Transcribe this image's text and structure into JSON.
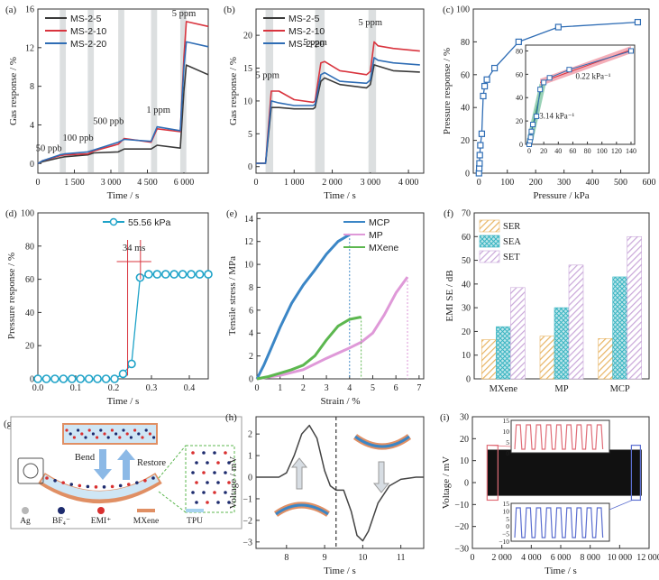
{
  "chart_data": [
    {
      "id": "a",
      "panel_label": "(a)",
      "type": "line",
      "xlabel": "Time / s",
      "ylabel": "Gas response / %",
      "xlim": [
        0,
        7000
      ],
      "ylim": [
        -1,
        16
      ],
      "xticks": [
        0,
        1500,
        3000,
        4500,
        6000
      ],
      "xtick_labels": [
        "0",
        "1 500",
        "3 000",
        "4 500",
        "6 000"
      ],
      "yticks": [
        0,
        4,
        8,
        12,
        16
      ],
      "ytick_labels": [
        "0",
        "4",
        "8",
        "12",
        "16"
      ],
      "legend_position": "top-left",
      "shaded_intervals": [
        [
          900,
          1150
        ],
        [
          2050,
          2300
        ],
        [
          3300,
          3550
        ],
        [
          4650,
          4900
        ],
        [
          5850,
          6100
        ]
      ],
      "annotations": [
        "50 ppb",
        "100 ppb",
        "500 ppb",
        "1 ppm",
        "5 ppm"
      ],
      "annotation_points": [
        [
          450,
          0.9
        ],
        [
          1650,
          2.0
        ],
        [
          2900,
          3.7
        ],
        [
          4950,
          4.9
        ],
        [
          6000,
          14.9
        ]
      ],
      "series": [
        {
          "name": "MS-2-5",
          "color": "#3a3a3a",
          "x": [
            0,
            200,
            900,
            1100,
            2050,
            2300,
            3300,
            3550,
            4650,
            4900,
            5850,
            6000,
            6100,
            7000
          ],
          "y": [
            0,
            0.2,
            0.6,
            0.7,
            0.9,
            1.1,
            1.2,
            1.5,
            1.5,
            1.9,
            1.6,
            7.5,
            10.2,
            9.2
          ]
        },
        {
          "name": "MS-2-10",
          "color": "#d9343e",
          "x": [
            0,
            200,
            900,
            1100,
            2050,
            2300,
            3300,
            3550,
            4650,
            4900,
            5850,
            6000,
            6100,
            7000
          ],
          "y": [
            0,
            0.3,
            0.8,
            0.9,
            1.0,
            1.3,
            2.0,
            2.6,
            2.2,
            3.6,
            3.3,
            11.0,
            14.7,
            14.2
          ]
        },
        {
          "name": "MS-2-20",
          "color": "#2f6db5",
          "x": [
            0,
            200,
            900,
            1100,
            2050,
            2300,
            3300,
            3550,
            4650,
            4900,
            5850,
            6000,
            6100,
            7000
          ],
          "y": [
            0,
            0.3,
            0.9,
            1.0,
            1.2,
            1.4,
            2.2,
            2.5,
            2.3,
            3.8,
            3.4,
            10.0,
            12.6,
            12.1
          ]
        }
      ]
    },
    {
      "id": "b",
      "panel_label": "(b)",
      "type": "line",
      "xlabel": "Time / s",
      "ylabel": "Gas response / %",
      "xlim": [
        0,
        4400
      ],
      "ylim": [
        -1,
        24
      ],
      "xticks": [
        0,
        1000,
        2000,
        3000,
        4000
      ],
      "xtick_labels": [
        "0",
        "1 000",
        "2 000",
        "3 000",
        "4 000"
      ],
      "yticks": [
        0,
        5,
        10,
        15,
        20
      ],
      "ytick_labels": [
        "0",
        "5",
        "10",
        "15",
        "20"
      ],
      "legend_position": "top-left",
      "shaded_intervals": [
        [
          250,
          450
        ],
        [
          1550,
          1800
        ],
        [
          2950,
          3150
        ]
      ],
      "annotations": [
        "5 ppm",
        "5 ppm",
        "5 ppm"
      ],
      "annotation_points": [
        [
          300,
          13.5
        ],
        [
          1550,
          18.5
        ],
        [
          3000,
          21.5
        ]
      ],
      "series": [
        {
          "name": "MS-2-5",
          "color": "#3a3a3a",
          "x": [
            0,
            250,
            400,
            600,
            1000,
            1500,
            1550,
            1700,
            1800,
            2200,
            2900,
            3000,
            3100,
            3200,
            3600,
            4300
          ],
          "y": [
            0.5,
            0.5,
            9.0,
            9.0,
            8.8,
            8.8,
            9.0,
            13.0,
            13.5,
            12.5,
            12.0,
            12.5,
            15.5,
            15.3,
            14.6,
            14.4
          ]
        },
        {
          "name": "MS-2-10",
          "color": "#d9343e",
          "x": [
            0,
            250,
            400,
            600,
            1000,
            1500,
            1550,
            1700,
            1800,
            2200,
            2900,
            3000,
            3100,
            3200,
            3600,
            4300
          ],
          "y": [
            0.5,
            0.5,
            11.5,
            11.5,
            10.2,
            9.8,
            10.0,
            15.8,
            16.0,
            14.6,
            14.0,
            14.5,
            19.0,
            18.4,
            18.0,
            17.6
          ]
        },
        {
          "name": "MS-2-20",
          "color": "#2f6db5",
          "x": [
            0,
            250,
            400,
            600,
            1000,
            1500,
            1550,
            1700,
            1800,
            2200,
            2900,
            3000,
            3100,
            3200,
            3600,
            4300
          ],
          "y": [
            0.5,
            0.5,
            10.0,
            9.7,
            9.3,
            9.3,
            9.5,
            14.0,
            14.3,
            13.0,
            12.7,
            13.2,
            16.6,
            16.2,
            15.8,
            15.5
          ]
        }
      ]
    },
    {
      "id": "c",
      "panel_label": "(c)",
      "type": "line",
      "xlabel": "Pressure / kPa",
      "ylabel": "Pressure response / %",
      "xlim": [
        -20,
        600
      ],
      "ylim": [
        0,
        100
      ],
      "xticks": [
        0,
        100,
        200,
        300,
        400,
        500,
        600
      ],
      "xtick_labels": [
        "0",
        "100",
        "200",
        "300",
        "400",
        "500",
        "600"
      ],
      "yticks": [
        0,
        20,
        40,
        60,
        80,
        100
      ],
      "ytick_labels": [
        "0",
        "20",
        "40",
        "60",
        "80",
        "100"
      ],
      "series": [
        {
          "name": "",
          "color": "#2f6db5",
          "x": [
            0,
            1,
            2,
            3,
            5,
            10,
            15,
            20,
            28,
            55,
            140,
            280,
            560
          ],
          "y": [
            0,
            3,
            6,
            11,
            17,
            24,
            47,
            53,
            57,
            64,
            80,
            89,
            92
          ]
        }
      ],
      "inset": {
        "xlim": [
          -5,
          145
        ],
        "ylim": [
          0,
          85
        ],
        "xticks": [
          0,
          20,
          40,
          60,
          80,
          100,
          120,
          140
        ],
        "xtick_labels": [
          "0",
          "20",
          "40",
          "60",
          "80",
          "100",
          "120",
          "140"
        ],
        "yticks": [
          0,
          20,
          40,
          60,
          80
        ],
        "ytick_labels": [
          "0",
          "20",
          "40",
          "60",
          "80"
        ],
        "points_x": [
          0,
          1,
          2,
          3,
          5,
          10,
          15,
          20,
          28,
          55,
          140
        ],
        "points_y": [
          0,
          3,
          6,
          11,
          17,
          24,
          47,
          53,
          57,
          64,
          80
        ],
        "fit_low": {
          "x": [
            0,
            18
          ],
          "y": [
            2,
            52
          ],
          "label": "3.14 kPa⁻¹"
        },
        "fit_high": {
          "x": [
            15,
            140
          ],
          "y": [
            53,
            81
          ],
          "label": "0.22 kPa⁻¹"
        }
      }
    },
    {
      "id": "d",
      "panel_label": "(d)",
      "type": "line",
      "xlabel": "Time / s",
      "ylabel": "Pressure response / %",
      "xlim": [
        0,
        0.45
      ],
      "ylim": [
        0,
        100
      ],
      "xticks": [
        0,
        0.1,
        0.2,
        0.3,
        0.4
      ],
      "xtick_labels": [
        "0.0",
        "0.1",
        "0.2",
        "0.3",
        "0.4"
      ],
      "yticks": [
        0,
        20,
        40,
        60,
        80,
        100
      ],
      "ytick_labels": [
        "0",
        "20",
        "40",
        "60",
        "80",
        "100"
      ],
      "legend_position": "top-right",
      "response_time_label": "34 ms",
      "response_window": [
        0.237,
        0.271
      ],
      "series": [
        {
          "name": "55.56 kPa",
          "color": "#1fa3c8",
          "x": [
            0,
            0.0225,
            0.045,
            0.0675,
            0.09,
            0.1125,
            0.135,
            0.1575,
            0.18,
            0.2025,
            0.225,
            0.2475,
            0.27,
            0.2925,
            0.315,
            0.3375,
            0.36,
            0.3825,
            0.405,
            0.4275,
            0.45
          ],
          "y": [
            0,
            0,
            0,
            0,
            0,
            0,
            0,
            0,
            0,
            0,
            3,
            9,
            61,
            63,
            63,
            63,
            63,
            63,
            63,
            63,
            63
          ]
        }
      ]
    },
    {
      "id": "e",
      "panel_label": "(e)",
      "type": "line",
      "xlabel": "Strain / %",
      "ylabel": "Tensile stress / MPa",
      "xlim": [
        0,
        7.2
      ],
      "ylim": [
        0,
        14.5
      ],
      "xticks": [
        0,
        1,
        2,
        3,
        4,
        5,
        6,
        7
      ],
      "xtick_labels": [
        "0",
        "1",
        "2",
        "3",
        "4",
        "5",
        "6",
        "7"
      ],
      "yticks": [
        0,
        2,
        4,
        6,
        8,
        10,
        12,
        14
      ],
      "ytick_labels": [
        "0",
        "2",
        "4",
        "6",
        "8",
        "10",
        "12",
        "14"
      ],
      "legend_position": "top-right",
      "series": [
        {
          "name": "MCP",
          "color": "#3b86c6",
          "x": [
            0,
            0.3,
            0.6,
            1.0,
            1.5,
            2.0,
            2.5,
            3.0,
            3.5,
            4.0
          ],
          "y": [
            0,
            1.2,
            2.6,
            4.5,
            6.6,
            8.2,
            9.5,
            10.9,
            12.0,
            12.6
          ]
        },
        {
          "name": "MP",
          "color": "#df99d8",
          "x": [
            0,
            1,
            2,
            3,
            4,
            4.5,
            5,
            5.5,
            6,
            6.5
          ],
          "y": [
            0,
            0.3,
            0.8,
            1.8,
            2.7,
            3.2,
            4.0,
            5.6,
            7.5,
            8.9
          ]
        },
        {
          "name": "MXene",
          "color": "#5cb74f",
          "x": [
            0,
            0.5,
            1,
            1.5,
            2,
            2.5,
            3,
            3.5,
            4,
            4.5
          ],
          "y": [
            0,
            0.2,
            0.5,
            0.8,
            1.2,
            2.0,
            3.4,
            4.6,
            5.2,
            5.4
          ]
        }
      ]
    },
    {
      "id": "f",
      "panel_label": "(f)",
      "type": "bar",
      "ylabel": "EMI SE / dB",
      "ylim": [
        0,
        70
      ],
      "yticks": [
        0,
        10,
        20,
        30,
        40,
        50,
        60,
        70
      ],
      "ytick_labels": [
        "0",
        "10",
        "20",
        "30",
        "40",
        "50",
        "60",
        "70"
      ],
      "categories": [
        "MXene",
        "MP",
        "MCP"
      ],
      "legend_position": "top-left",
      "series": [
        {
          "name": "SER",
          "color": "#e8b463",
          "values": [
            16.5,
            18,
            17
          ]
        },
        {
          "name": "SEA",
          "color": "#39b5c2",
          "values": [
            22,
            30,
            43
          ]
        },
        {
          "name": "SET",
          "color": "#c9a7d9",
          "values": [
            38.5,
            48,
            60
          ]
        }
      ]
    },
    {
      "id": "h",
      "panel_label": "(h)",
      "type": "line",
      "xlabel": "Time / s",
      "ylabel": "Voltage / mV",
      "xlim": [
        7.2,
        11.6
      ],
      "ylim": [
        -3.3,
        2.8
      ],
      "xticks": [
        8,
        9,
        10,
        11
      ],
      "xtick_labels": [
        "8",
        "9",
        "10",
        "11"
      ],
      "yticks": [
        -3,
        -2,
        -1,
        0,
        1,
        2
      ],
      "ytick_labels": [
        "−3",
        "−2",
        "−1",
        "0",
        "1",
        "2"
      ],
      "divider_x": 9.3,
      "series": [
        {
          "name": "",
          "color": "#444444",
          "x": [
            7.2,
            7.8,
            8.0,
            8.2,
            8.4,
            8.6,
            8.8,
            9.0,
            9.15,
            9.3,
            9.5,
            9.7,
            9.85,
            10.0,
            10.15,
            10.4,
            10.7,
            11.0,
            11.4,
            11.6
          ],
          "y": [
            0,
            0,
            0.2,
            1.0,
            2.0,
            2.4,
            1.8,
            0.3,
            -0.4,
            -0.6,
            -0.6,
            -1.6,
            -2.7,
            -2.95,
            -2.5,
            -1.2,
            -0.4,
            -0.1,
            0,
            0
          ]
        }
      ]
    },
    {
      "id": "i",
      "panel_label": "(i)",
      "type": "area",
      "xlabel": "Time / s",
      "ylabel": "Voltage / mV",
      "xlim": [
        0,
        12000
      ],
      "ylim": [
        -30,
        30
      ],
      "xticks": [
        0,
        2000,
        4000,
        6000,
        8000,
        10000,
        12000
      ],
      "xtick_labels": [
        "0",
        "2 000",
        "4 000",
        "6 000",
        "8 000",
        "10 000",
        "12 000"
      ],
      "yticks": [
        -30,
        -20,
        -10,
        0,
        10,
        20,
        30
      ],
      "ytick_labels": [
        "−30",
        "−20",
        "−10",
        "0",
        "10",
        "20",
        "30"
      ],
      "band": {
        "x": [
          1000,
          11500
        ],
        "y": [
          -6,
          15
        ]
      },
      "inset_top": {
        "yticks": [
          0,
          5,
          10,
          15
        ],
        "ytick_labels": [
          "0",
          "5",
          "10",
          "15"
        ],
        "color": "#e06d78",
        "cycles": 9
      },
      "inset_bottom": {
        "yticks": [
          -10,
          -5,
          0,
          5,
          10,
          15
        ],
        "ytick_labels": [
          "−10",
          "−5",
          "0",
          "5",
          "10",
          "15"
        ],
        "color": "#5b6ed0",
        "cycles": 9
      }
    }
  ],
  "schematic_g": {
    "panel_label": "(g)",
    "bend_label": "Bend",
    "restore_label": "Restore",
    "legend": [
      "Ag",
      "BF₄⁻",
      "EMI⁺",
      "MXene",
      "TPU"
    ]
  }
}
